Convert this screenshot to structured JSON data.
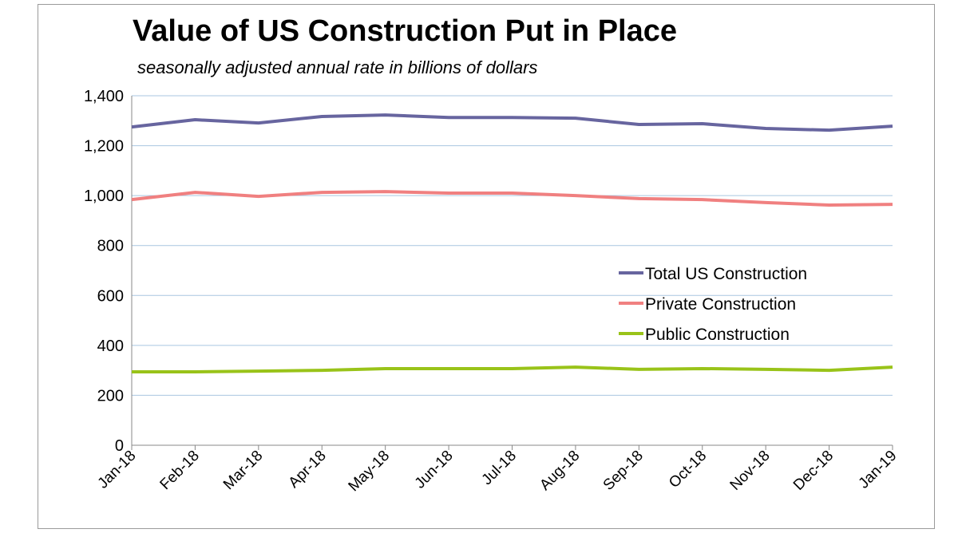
{
  "chart_data": {
    "type": "line",
    "title": "Value of US Construction Put in Place",
    "subtitle": "seasonally adjusted annual rate in billions of dollars",
    "categories": [
      "Jan-18",
      "Feb-18",
      "Mar-18",
      "Apr-18",
      "May-18",
      "Jun-18",
      "Jul-18",
      "Aug-18",
      "Sep-18",
      "Oct-18",
      "Nov-18",
      "Dec-18",
      "Jan-19"
    ],
    "ylim": [
      0,
      1400
    ],
    "yticks": [
      0,
      200,
      400,
      600,
      800,
      1000,
      1200,
      1400
    ],
    "ytick_labels": [
      "0",
      "200",
      "400",
      "600",
      "800",
      "1,000",
      "1,200",
      "1,400"
    ],
    "grid": true,
    "legend_placement": "center-right",
    "series": [
      {
        "name": "Total US Construction",
        "color": "#67659f",
        "values": [
          1275,
          1304,
          1291,
          1317,
          1323,
          1313,
          1313,
          1310,
          1285,
          1288,
          1269,
          1262,
          1278
        ]
      },
      {
        "name": "Private Construction",
        "color": "#f08080",
        "values": [
          984,
          1013,
          997,
          1013,
          1016,
          1010,
          1010,
          1000,
          988,
          984,
          972,
          962,
          965
        ]
      },
      {
        "name": "Public Construction",
        "color": "#99c319",
        "values": [
          294,
          294,
          297,
          300,
          307,
          307,
          307,
          313,
          304,
          307,
          304,
          300,
          313
        ]
      }
    ]
  }
}
